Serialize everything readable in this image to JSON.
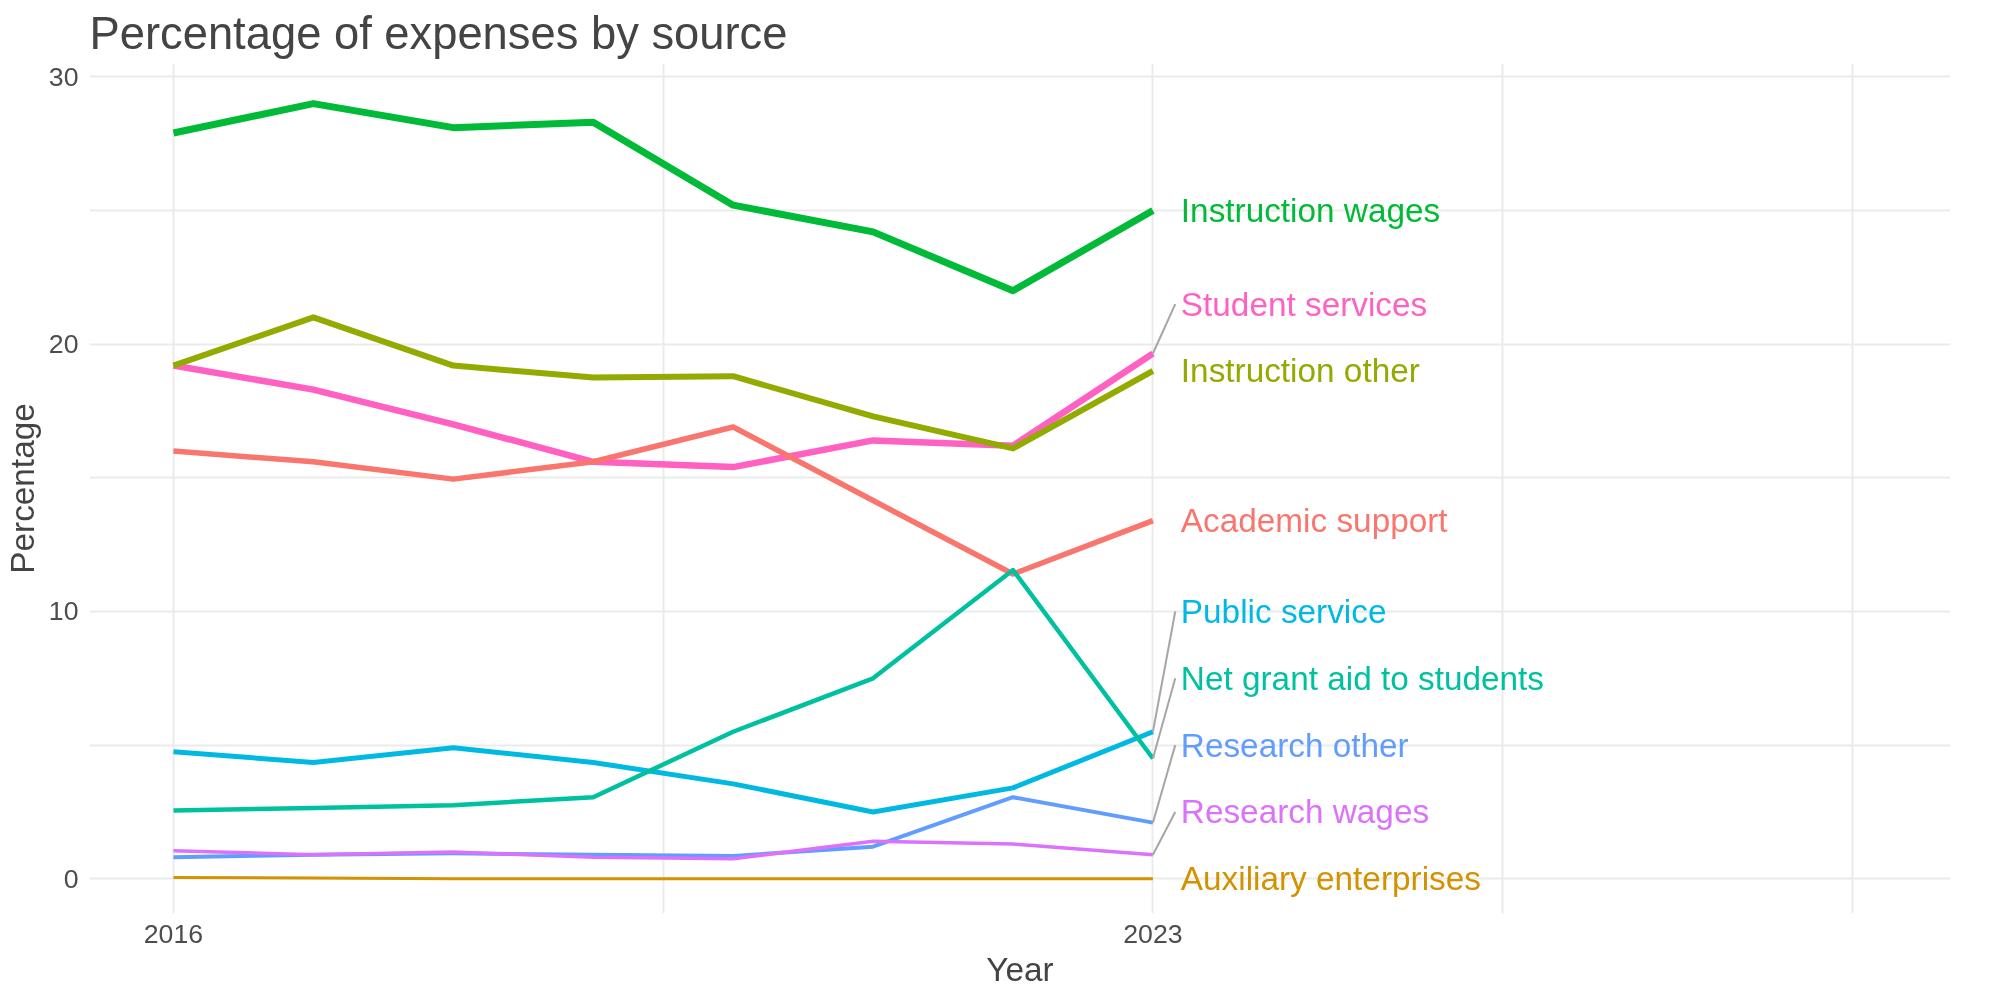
{
  "chart_data": {
    "type": "line",
    "title": "Percentage of expenses by source",
    "xlabel": "Year",
    "ylabel": "Percentage",
    "x": [
      2016,
      2017,
      2018,
      2019,
      2020,
      2021,
      2022,
      2023
    ],
    "xlim": [
      2015.4,
      2028.7
    ],
    "xticks": [
      2016,
      {
        "value": 2019.5,
        "label": null
      },
      2023,
      {
        "value": 2025.5,
        "label": null
      },
      {
        "value": 2028,
        "label": null
      }
    ],
    "ylim": [
      -1.3,
      30.5
    ],
    "yticks": [
      0,
      {
        "value": 5,
        "label": null
      },
      10,
      {
        "value": 15,
        "label": null
      },
      20,
      {
        "value": 25,
        "label": null
      },
      30
    ],
    "grid": true,
    "legend": false,
    "marker": "none",
    "line_style": "solid",
    "series": [
      {
        "name": "Instruction wages",
        "color": "#00ba38",
        "values": [
          27.9,
          29.0,
          28.1,
          28.3,
          25.2,
          24.2,
          22.0,
          25.0
        ]
      },
      {
        "name": "Student services",
        "color": "#ff61c3",
        "values": [
          19.2,
          18.3,
          17.0,
          15.6,
          15.4,
          16.4,
          16.2,
          19.65
        ]
      },
      {
        "name": "Instruction other",
        "color": "#93aa00",
        "values": [
          19.2,
          21.0,
          19.2,
          18.75,
          18.8,
          17.3,
          16.1,
          19.0
        ]
      },
      {
        "name": "Academic support",
        "color": "#f8766d",
        "values": [
          16.0,
          15.6,
          14.95,
          15.6,
          16.9,
          14.15,
          11.4,
          13.4
        ]
      },
      {
        "name": "Public service",
        "color": "#00b9e3",
        "values": [
          4.75,
          4.35,
          4.9,
          4.35,
          3.55,
          2.5,
          3.4,
          5.5
        ]
      },
      {
        "name": "Net grant aid to students",
        "color": "#00c19f",
        "values": [
          2.55,
          2.65,
          2.75,
          3.05,
          5.5,
          7.5,
          11.55,
          4.5
        ]
      },
      {
        "name": "Research other",
        "color": "#619cff",
        "values": [
          0.8,
          0.9,
          0.95,
          0.9,
          0.85,
          1.2,
          3.05,
          2.1
        ]
      },
      {
        "name": "Research wages",
        "color": "#db72fb",
        "values": [
          1.05,
          0.9,
          1.0,
          0.8,
          0.75,
          1.4,
          1.3,
          0.9
        ]
      },
      {
        "name": "Auxiliary enterprises",
        "color": "#d39200",
        "values": [
          0.05,
          0.03,
          0,
          0,
          0,
          0,
          0,
          0
        ]
      }
    ]
  }
}
